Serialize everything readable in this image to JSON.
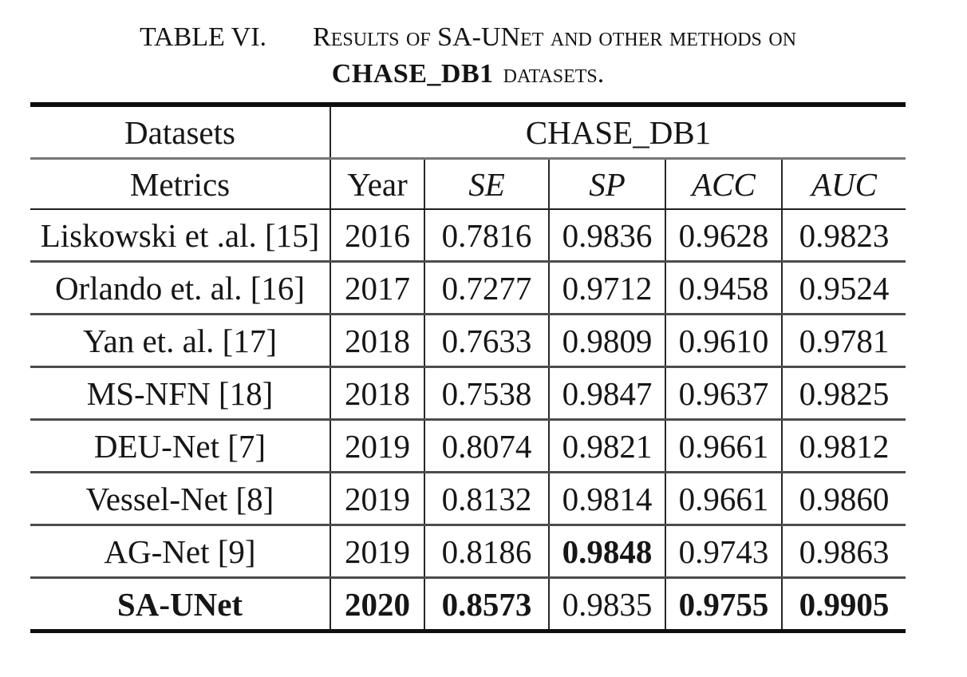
{
  "page": {
    "background": "#ffffff",
    "text_color": "#141414",
    "rule_color_heavy": "#0e0e0e",
    "rule_color_light": "#4c4c4c"
  },
  "caption": {
    "label": "TABLE VI.",
    "text": "Results of SA-UNet and other methods on",
    "dataset_bold": "CHASE_DB1",
    "text_end": "datasets."
  },
  "table": {
    "corner_header_row1": "Datasets",
    "span_header": "CHASE_DB1",
    "corner_header_row2": "Metrics",
    "metric_headers": [
      "Year",
      "SE",
      "SP",
      "ACC",
      "AUC"
    ],
    "rows": [
      {
        "cells": [
          "Liskowski et .al. [15]",
          "2016",
          "0.7816",
          "0.9836",
          "0.9628",
          "0.9823"
        ],
        "bold": [
          false,
          false,
          false,
          false,
          false,
          false
        ]
      },
      {
        "cells": [
          "Orlando et. al. [16]",
          "2017",
          "0.7277",
          "0.9712",
          "0.9458",
          "0.9524"
        ],
        "bold": [
          false,
          false,
          false,
          false,
          false,
          false
        ]
      },
      {
        "cells": [
          "Yan et. al. [17]",
          "2018",
          "0.7633",
          "0.9809",
          "0.9610",
          "0.9781"
        ],
        "bold": [
          false,
          false,
          false,
          false,
          false,
          false
        ]
      },
      {
        "cells": [
          "MS-NFN [18]",
          "2018",
          "0.7538",
          "0.9847",
          "0.9637",
          "0.9825"
        ],
        "bold": [
          false,
          false,
          false,
          false,
          false,
          false
        ]
      },
      {
        "cells": [
          "DEU-Net [7]",
          "2019",
          "0.8074",
          "0.9821",
          "0.9661",
          "0.9812"
        ],
        "bold": [
          false,
          false,
          false,
          false,
          false,
          false
        ]
      },
      {
        "cells": [
          "Vessel-Net [8]",
          "2019",
          "0.8132",
          "0.9814",
          "0.9661",
          "0.9860"
        ],
        "bold": [
          false,
          false,
          false,
          false,
          false,
          false
        ]
      },
      {
        "cells": [
          "AG-Net [9]",
          "2019",
          "0.8186",
          "0.9848",
          "0.9743",
          "0.9863"
        ],
        "bold": [
          false,
          false,
          false,
          true,
          false,
          false
        ]
      },
      {
        "cells": [
          "SA-UNet",
          "2020",
          "0.8573",
          "0.9835",
          "0.9755",
          "0.9905"
        ],
        "bold": [
          true,
          true,
          true,
          false,
          true,
          true
        ]
      }
    ]
  }
}
